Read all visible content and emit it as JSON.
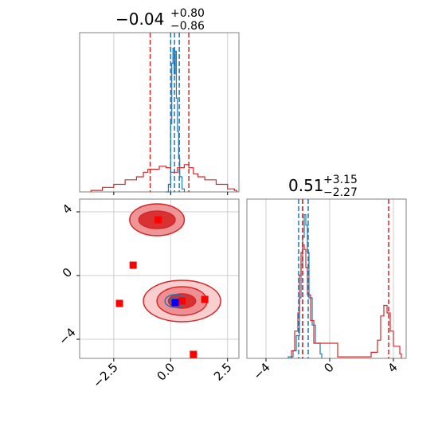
{
  "chart_data": [
    {
      "type": "histogram",
      "panel": "marginal-x",
      "title": {
        "value": "−0.04",
        "sup": "+0.80",
        "sub": "−0.86"
      },
      "xlim": [
        -4.0,
        3.0
      ],
      "grid": true,
      "series": [
        {
          "name": "",
          "color": "#1f77b4",
          "bins": [
            [
              -0.2,
              0.0
            ],
            [
              -0.1,
              0.05
            ],
            [
              0.0,
              0.45
            ],
            [
              0.05,
              0.85
            ],
            [
              0.1,
              0.95
            ],
            [
              0.15,
              0.78
            ],
            [
              0.2,
              0.93
            ],
            [
              0.25,
              0.62
            ],
            [
              0.3,
              0.4
            ],
            [
              0.35,
              0.22
            ],
            [
              0.4,
              0.1
            ],
            [
              0.5,
              0.02
            ]
          ]
        },
        {
          "name": "",
          "color": "#d62728",
          "bins": [
            [
              -3.5,
              0.01
            ],
            [
              -3.0,
              0.03
            ],
            [
              -2.5,
              0.05
            ],
            [
              -2.0,
              0.08
            ],
            [
              -1.5,
              0.1
            ],
            [
              -1.2,
              0.13
            ],
            [
              -1.0,
              0.15
            ],
            [
              -0.8,
              0.15
            ],
            [
              -0.5,
              0.17
            ],
            [
              -0.2,
              0.16
            ],
            [
              0.0,
              0.13
            ],
            [
              0.3,
              0.16
            ],
            [
              0.6,
              0.18
            ],
            [
              0.8,
              0.16
            ],
            [
              1.0,
              0.12
            ],
            [
              1.2,
              0.1
            ],
            [
              1.5,
              0.08
            ],
            [
              2.0,
              0.05
            ],
            [
              2.5,
              0.02
            ],
            [
              2.8,
              0.01
            ]
          ]
        }
      ],
      "quantiles": [
        {
          "color": "#1f77b4",
          "values": [
            -0.0,
            0.17,
            0.38
          ]
        },
        {
          "color": "#d62728",
          "values": [
            -0.9,
            0.8
          ]
        }
      ]
    },
    {
      "type": "scatter",
      "panel": "joint",
      "xlim": [
        -4.0,
        3.0
      ],
      "ylim": [
        -5.2,
        4.8
      ],
      "xticks": [
        -2.5,
        0.0,
        2.5
      ],
      "yticks": [
        -4,
        0,
        4
      ],
      "xtick_labels": [
        "−2.5",
        "0.0",
        "2.5"
      ],
      "ytick_labels": [
        "−4",
        "0",
        "4"
      ],
      "grid": true,
      "contours": [
        {
          "color": "#d62728",
          "center": [
            -0.6,
            3.5
          ],
          "rx": [
            1.2,
            0.8
          ],
          "ry": [
            1.0,
            0.55
          ],
          "levels": 2
        },
        {
          "color": "#d62728",
          "center": [
            0.5,
            -1.6
          ],
          "rx": [
            1.7,
            1.1,
            0.6
          ],
          "ry": [
            1.3,
            0.9,
            0.45
          ],
          "levels": 3
        },
        {
          "color": "#1f77b4",
          "center": [
            0.2,
            -1.6
          ],
          "rx": [
            0.45,
            0.25
          ],
          "ry": [
            0.4,
            0.22
          ],
          "levels": 2
        }
      ],
      "points": [
        {
          "color": "#ff0000",
          "x": -0.55,
          "y": 3.5
        },
        {
          "color": "#ff0000",
          "x": -1.65,
          "y": 0.65
        },
        {
          "color": "#ff0000",
          "x": -2.25,
          "y": -1.75
        },
        {
          "color": "#ff0000",
          "x": 0.5,
          "y": -1.6
        },
        {
          "color": "#ff0000",
          "x": 1.5,
          "y": -1.5
        },
        {
          "color": "#ff0000",
          "x": 1.0,
          "y": -4.95
        },
        {
          "color": "#0000ff",
          "x": 0.2,
          "y": -1.7
        }
      ]
    },
    {
      "type": "histogram",
      "panel": "marginal-y",
      "title": {
        "value": "0.51",
        "sup": "+3.15",
        "sub": "−2.27"
      },
      "xlim": [
        -5.2,
        4.8
      ],
      "xticks": [
        -4,
        0,
        4
      ],
      "xtick_labels": [
        "−4",
        "0",
        "4"
      ],
      "grid": true,
      "series": [
        {
          "name": "",
          "color": "#1f77b4",
          "bins": [
            [
              -2.6,
              0.01
            ],
            [
              -2.3,
              0.05
            ],
            [
              -2.1,
              0.15
            ],
            [
              -1.9,
              0.4
            ],
            [
              -1.8,
              0.62
            ],
            [
              -1.7,
              0.8
            ],
            [
              -1.6,
              0.95
            ],
            [
              -1.5,
              0.88
            ],
            [
              -1.4,
              0.7
            ],
            [
              -1.3,
              0.4
            ],
            [
              -1.1,
              0.22
            ],
            [
              -0.9,
              0.1
            ],
            [
              -0.6,
              0.03
            ]
          ]
        },
        {
          "name": "",
          "color": "#d62728",
          "bins": [
            [
              -2.4,
              0.05
            ],
            [
              -2.2,
              0.18
            ],
            [
              -2.0,
              0.3
            ],
            [
              -1.9,
              0.55
            ],
            [
              -1.8,
              0.7
            ],
            [
              -1.7,
              0.75
            ],
            [
              -1.6,
              0.72
            ],
            [
              -1.5,
              0.6
            ],
            [
              -1.4,
              0.42
            ],
            [
              -1.2,
              0.25
            ],
            [
              -1.0,
              0.1
            ],
            [
              0.5,
              0.01
            ],
            [
              2.6,
              0.04
            ],
            [
              3.0,
              0.12
            ],
            [
              3.2,
              0.28
            ],
            [
              3.4,
              0.35
            ],
            [
              3.6,
              0.3
            ],
            [
              3.8,
              0.18
            ],
            [
              4.0,
              0.08
            ],
            [
              4.4,
              0.03
            ]
          ]
        }
      ],
      "quantiles": [
        {
          "color": "#1f77b4",
          "values": [
            -1.95,
            -1.7,
            -1.35
          ]
        },
        {
          "color": "#d62728",
          "values": [
            -1.7,
            3.7
          ]
        }
      ]
    }
  ]
}
